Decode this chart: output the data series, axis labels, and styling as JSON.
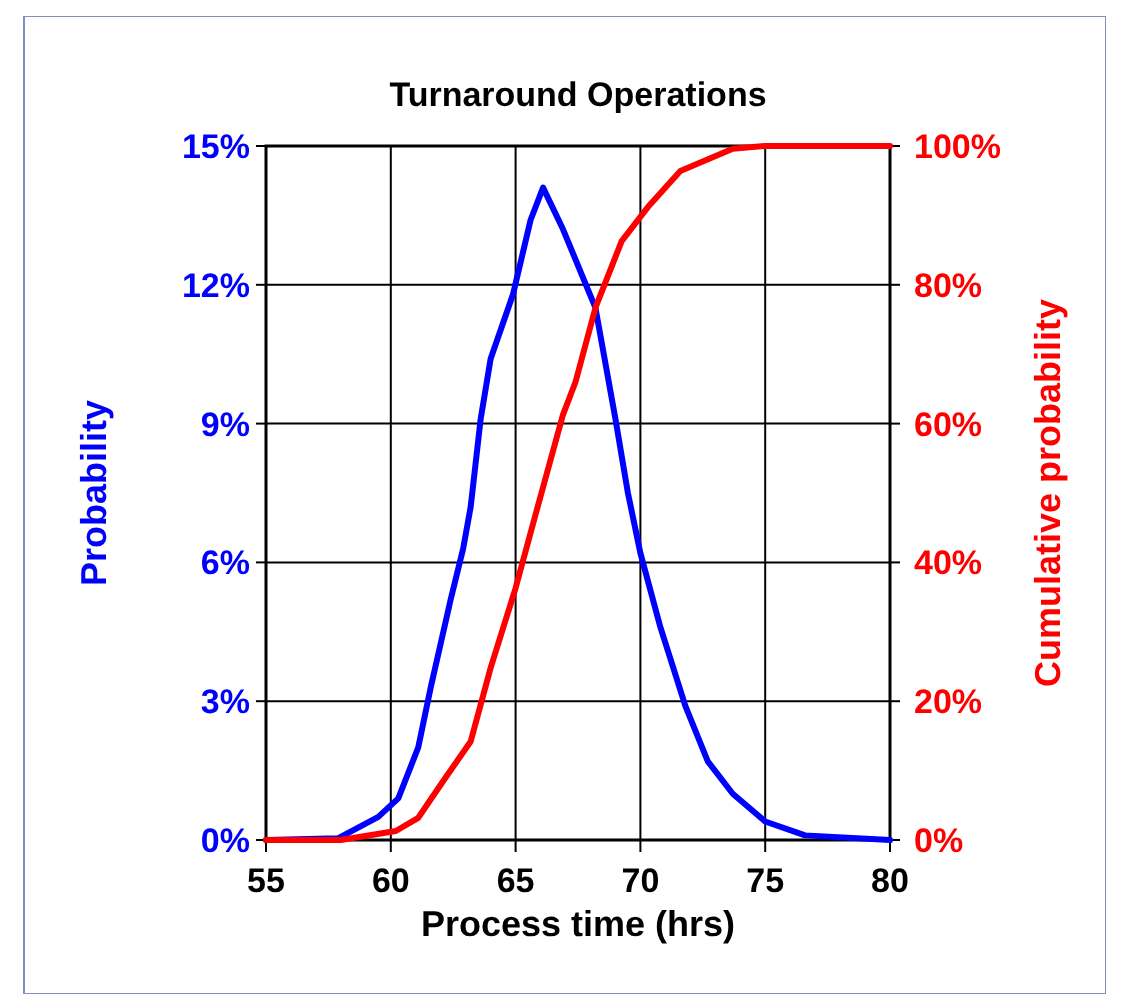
{
  "chart_data": {
    "type": "line",
    "title": "Turnaround Operations",
    "xlabel": "Process time (hrs)",
    "ylabel": "Probability",
    "y2label": "Cumulative probability",
    "xlim": [
      55,
      80
    ],
    "xticks": [
      55,
      60,
      65,
      70,
      75,
      80
    ],
    "ylim": [
      0,
      15
    ],
    "yticks": [
      {
        "value": 0,
        "label": "0%"
      },
      {
        "value": 3,
        "label": "3%"
      },
      {
        "value": 6,
        "label": "6%"
      },
      {
        "value": 9,
        "label": "9%"
      },
      {
        "value": 12,
        "label": "12%"
      },
      {
        "value": 15,
        "label": "15%"
      }
    ],
    "y2lim": [
      0,
      100
    ],
    "y2ticks": [
      {
        "value": 0,
        "label": "0%"
      },
      {
        "value": 20,
        "label": "20%"
      },
      {
        "value": 40,
        "label": "40%"
      },
      {
        "value": 60,
        "label": "60%"
      },
      {
        "value": 80,
        "label": "80%"
      },
      {
        "value": 100,
        "label": "100%"
      }
    ],
    "grid": true,
    "line_style": "solid",
    "marker": "none",
    "series": [
      {
        "color": "#0000ff",
        "x": [
          55,
          57.9,
          59.5,
          60.3,
          61.1,
          61.6,
          62.4,
          62.9,
          63.2,
          63.6,
          64.0,
          64.9,
          65.6,
          66.1,
          66.9,
          68.2,
          69.0,
          69.5,
          70.0,
          70.8,
          71.8,
          72.7,
          73.7,
          75.0,
          76.6,
          80
        ],
        "values": [
          0,
          0.04,
          0.5,
          0.9,
          2.0,
          3.3,
          5.2,
          6.3,
          7.2,
          9.1,
          10.4,
          11.8,
          13.4,
          14.1,
          13.2,
          11.5,
          9.1,
          7.5,
          6.2,
          4.6,
          2.9,
          1.7,
          1.0,
          0.4,
          0.1,
          0
        ]
      },
      {
        "color": "#ff0000",
        "axis": "y2",
        "x": [
          55,
          58,
          60.2,
          61.1,
          62.1,
          63.2,
          64.0,
          65.0,
          65.8,
          66.9,
          67.4,
          68.2,
          69.25,
          70.3,
          71.6,
          73.7,
          75.0,
          80
        ],
        "values": [
          0,
          0,
          1.3,
          3.2,
          8.5,
          14.2,
          24.8,
          36.3,
          46.9,
          61.3,
          66,
          76.7,
          86.3,
          91.2,
          96.4,
          99.6,
          100,
          100
        ]
      }
    ]
  }
}
